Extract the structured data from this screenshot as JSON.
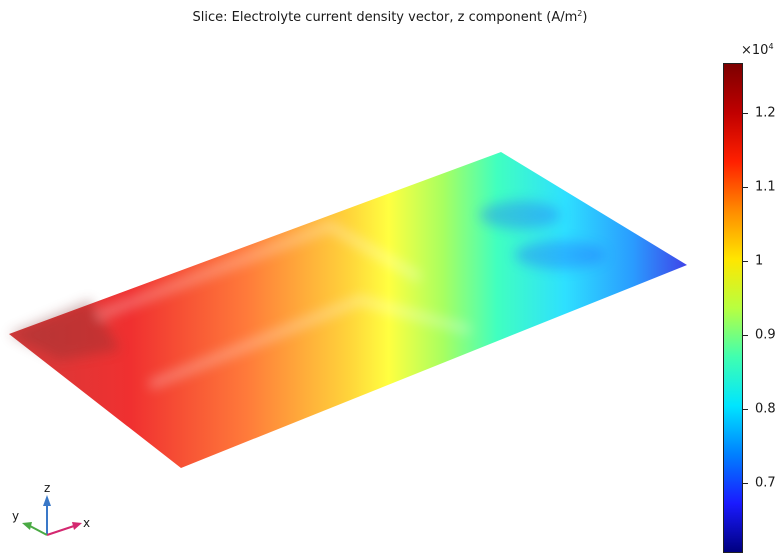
{
  "plot": {
    "title_main": "Slice: Electrolyte current density vector, z component (A/m",
    "title_sup": "2",
    "title_end": ")"
  },
  "colorbar": {
    "multiplier_base": "×10",
    "multiplier_exp": "4",
    "ticks": [
      "1.2",
      "1.1",
      "1",
      "0.9",
      "0.8",
      "0.7"
    ],
    "colors": [
      "#7d0000",
      "#c00000",
      "#ff2000",
      "#ff8a00",
      "#ffe600",
      "#b8ff40",
      "#40ffb0",
      "#00e5ff",
      "#0080ff",
      "#1a1aff",
      "#000080"
    ]
  },
  "axes": {
    "x": "x",
    "y": "y",
    "z": "z"
  }
}
